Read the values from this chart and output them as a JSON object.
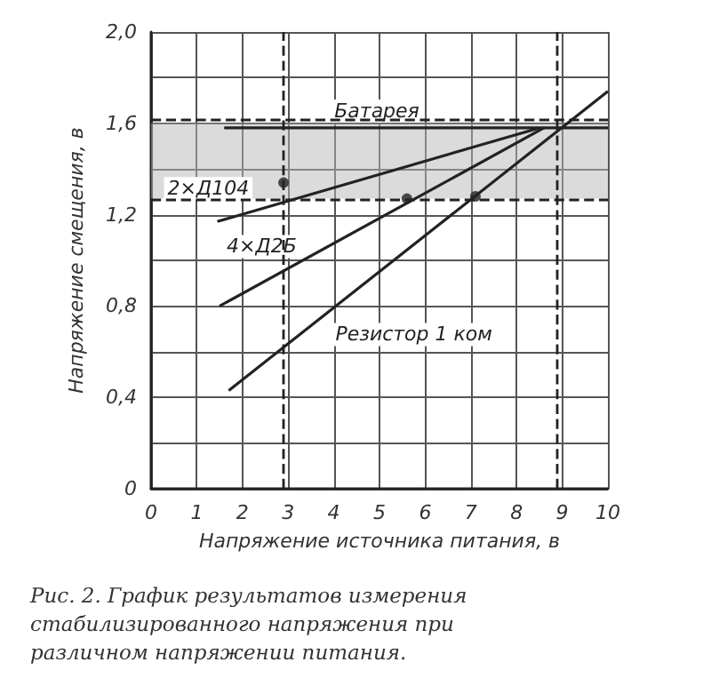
{
  "chart_data": {
    "type": "line",
    "title": "Рис. 2. График результатов измерения стабилизированного напряжения при различном напряжении питания.",
    "xlabel": "Напряжение источника питания, в",
    "ylabel": "Напряжение смещения, в",
    "xlim": [
      0,
      10
    ],
    "xticks": [
      0,
      1,
      2,
      3,
      4,
      5,
      6,
      7,
      8,
      9,
      10
    ],
    "ylim": [
      0,
      2.0
    ],
    "yticks": [
      0,
      {
        "value": 0.2,
        "label": null
      },
      {
        "value": 0.4,
        "label": "0,4"
      },
      {
        "value": 0.6,
        "label": null
      },
      {
        "value": 0.8,
        "label": "0,8"
      },
      {
        "value": 1.0,
        "label": null
      },
      {
        "value": 1.2,
        "label": "1,2"
      },
      {
        "value": 1.4,
        "label": null
      },
      {
        "value": 1.6,
        "label": "1,6"
      },
      {
        "value": 1.8,
        "label": null
      },
      {
        "value": 2.0,
        "label": "2,0"
      }
    ],
    "grid": true,
    "legend": false,
    "marker": "none",
    "line_style": "solid",
    "series": [
      {
        "name": "Батарея",
        "color": "#222222",
        "x": [
          1.6,
          10
        ],
        "values": [
          1.58,
          1.58
        ]
      },
      {
        "name": "2×Д104",
        "color": "#222222",
        "x": [
          1.45,
          8.5
        ],
        "values": [
          1.17,
          1.58
        ]
      },
      {
        "name": "4×Д2Б",
        "color": "#222222",
        "x": [
          1.5,
          8.6
        ],
        "values": [
          0.8,
          1.58
        ]
      },
      {
        "name": "Резистор 1 ком",
        "color": "#222222",
        "x": [
          1.7,
          10
        ],
        "values": [
          0.43,
          1.74
        ]
      },
      {
        "type": "scatter",
        "marker": "circle",
        "color": "#222222",
        "x": [
          2.9,
          5.6,
          7.1
        ],
        "values": [
          1.34,
          1.27,
          1.28
        ]
      }
    ],
    "ref_lines": [
      {
        "axis": "y",
        "value": 1.62,
        "label": null,
        "line_style": "dashed"
      },
      {
        "axis": "y",
        "value": 1.27,
        "label": null,
        "line_style": "dashed"
      },
      {
        "axis": "x",
        "value": 2.9,
        "label": null,
        "line_style": "dashed"
      },
      {
        "axis": "x",
        "value": 8.9,
        "label": null,
        "line_style": "dashed"
      }
    ],
    "bands": [
      {
        "axis": "y",
        "from": 1.27,
        "to": 1.6,
        "label": null,
        "color": "#b8b8b8"
      }
    ]
  }
}
